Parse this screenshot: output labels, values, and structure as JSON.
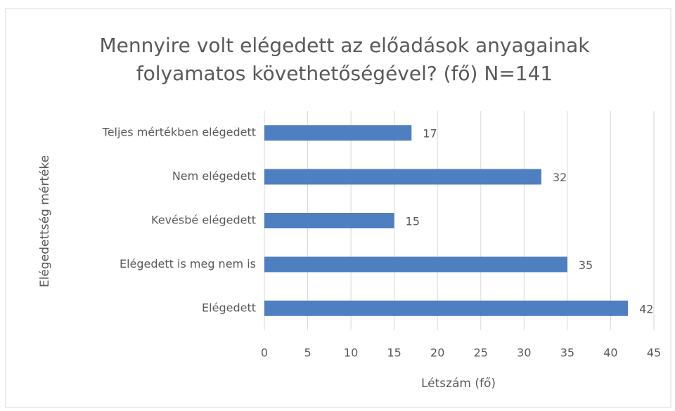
{
  "chart_data": {
    "type": "bar",
    "orientation": "horizontal",
    "title": [
      "Mennyire volt elégedett az előadások anyagainak",
      "folyamatos követhetőségével? (fő) N=141"
    ],
    "x_label": "Létszám (fő)",
    "y_label": "Elégedettség mértéke",
    "categories": [
      "Teljes mértékben elégedett",
      "Nem elégedett",
      "Kevésbé elégedett",
      "Elégedett is meg nem is",
      "Elégedett"
    ],
    "values": [
      17,
      32,
      15,
      35,
      42
    ],
    "color": "#4e7fc1",
    "xlim": [
      0,
      45
    ],
    "xticks": [
      0,
      5,
      10,
      15,
      20,
      25,
      30,
      35,
      40,
      45
    ],
    "grid": true,
    "data_labels": true
  }
}
